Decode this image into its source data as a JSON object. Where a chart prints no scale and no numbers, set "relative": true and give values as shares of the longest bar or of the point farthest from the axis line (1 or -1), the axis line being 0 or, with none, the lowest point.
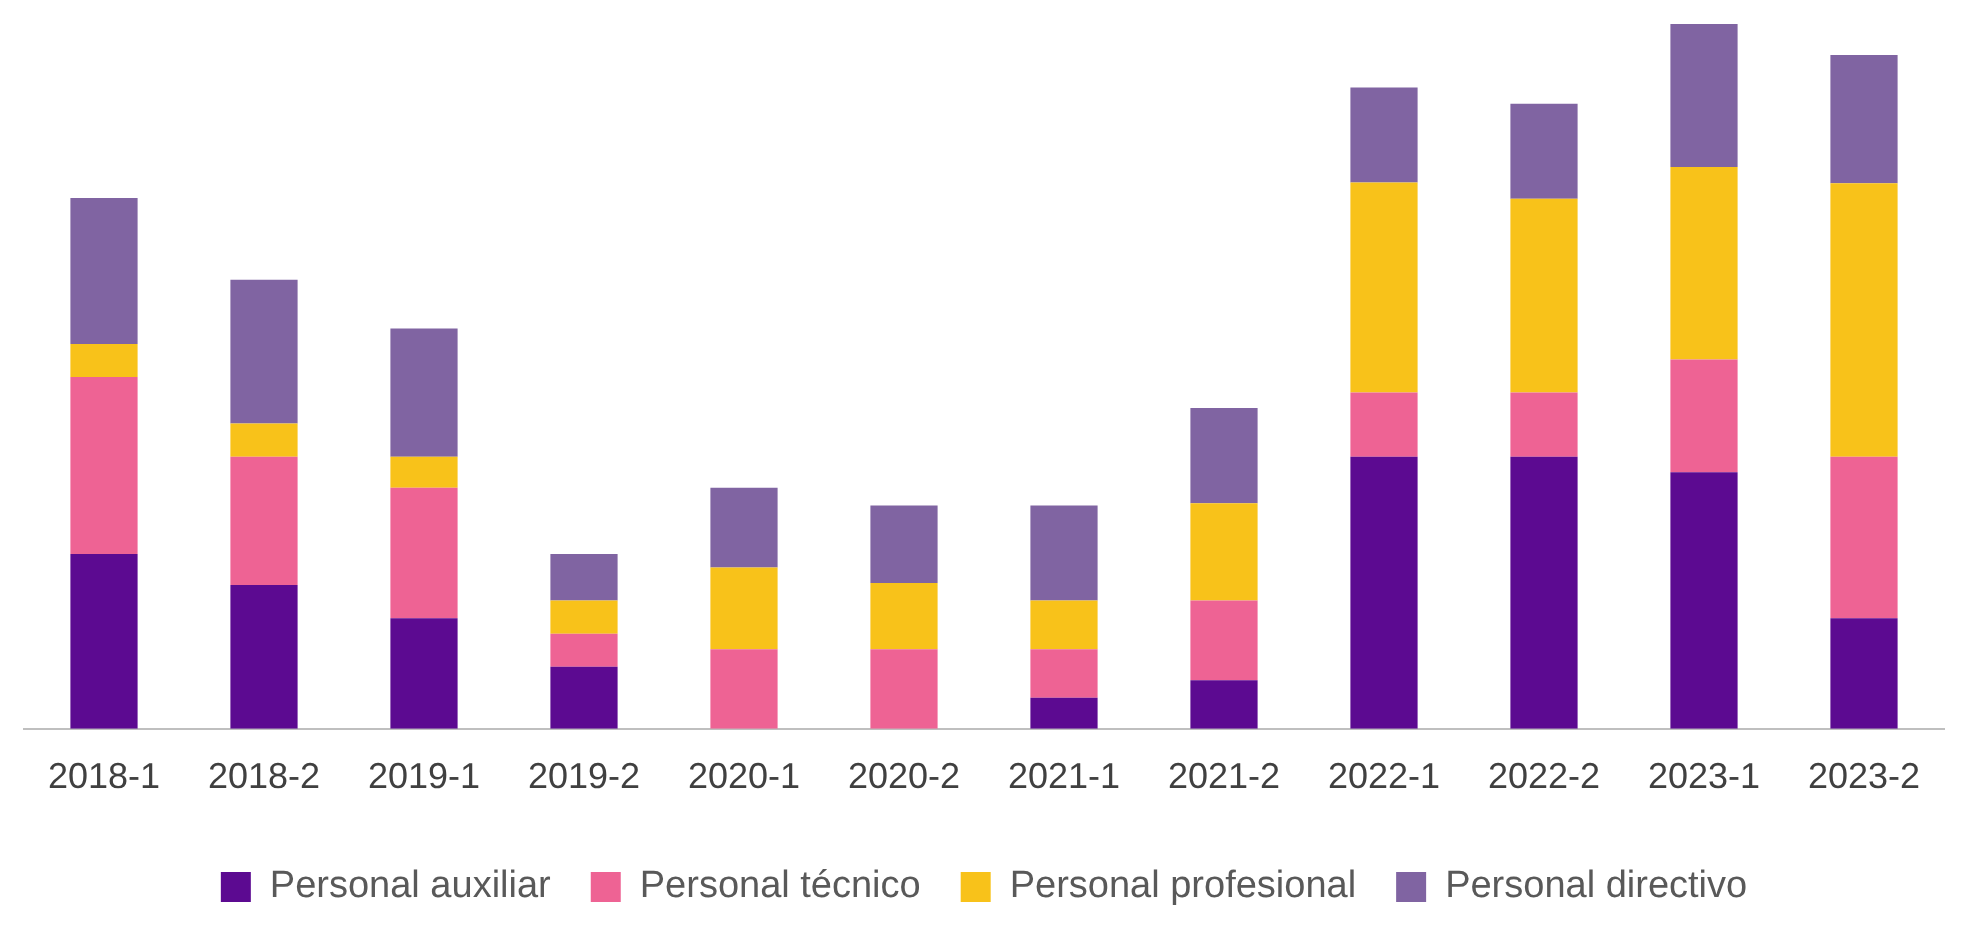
{
  "chart_data": {
    "type": "bar",
    "stacked": true,
    "relative": true,
    "legend": "bottom",
    "grid": false,
    "categories": [
      "2018-1",
      "2018-2",
      "2019-1",
      "2019-2",
      "2020-1",
      "2020-2",
      "2021-1",
      "2021-2",
      "2022-1",
      "2022-2",
      "2023-1",
      "2023-2"
    ],
    "series": [
      {
        "name": "Personal auxiliar",
        "color": "#5c0a91",
        "values": [
          0.248,
          0.204,
          0.157,
          0.088,
          0,
          0,
          0.044,
          0.069,
          0.386,
          0.386,
          0.364,
          0.157
        ]
      },
      {
        "name": "Personal técnico",
        "color": "#ee6394",
        "values": [
          0.251,
          0.182,
          0.185,
          0.047,
          0.113,
          0.113,
          0.069,
          0.113,
          0.091,
          0.091,
          0.16,
          0.229
        ]
      },
      {
        "name": "Personal profesional",
        "color": "#f8c21a",
        "values": [
          0.047,
          0.047,
          0.044,
          0.047,
          0.116,
          0.094,
          0.069,
          0.138,
          0.298,
          0.275,
          0.273,
          0.388
        ]
      },
      {
        "name": "Personal directivo",
        "color": "#8064a2",
        "values": [
          0.207,
          0.204,
          0.182,
          0.066,
          0.113,
          0.11,
          0.135,
          0.135,
          0.135,
          0.135,
          0.203,
          0.182
        ]
      }
    ]
  }
}
